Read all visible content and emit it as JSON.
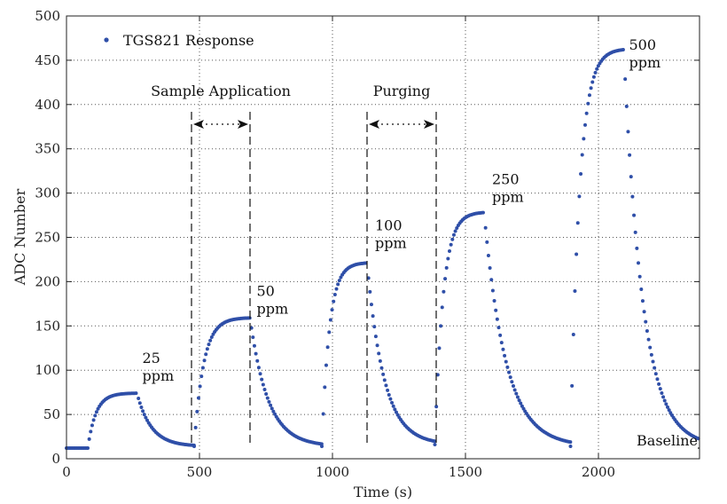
{
  "chart_data": {
    "type": "scatter",
    "title": "",
    "xlabel": "Time (s)",
    "ylabel": "ADC Number",
    "xlim": [
      0,
      2380
    ],
    "ylim": [
      0,
      500
    ],
    "xticks": [
      0,
      500,
      1000,
      1500,
      2000
    ],
    "yticks": [
      0,
      50,
      100,
      150,
      200,
      250,
      300,
      350,
      400,
      450,
      500
    ],
    "grid": true,
    "legend": {
      "position": "top-left",
      "entries": [
        "TGS821 Response"
      ]
    },
    "series": [
      {
        "name": "TGS821 Response",
        "color": "#2f4fa8",
        "marker": "dot",
        "pulses": [
          {
            "start_time": 80,
            "end_time": 265,
            "next_start": 480,
            "baseline": 12,
            "peak": 74
          },
          {
            "start_time": 480,
            "end_time": 690,
            "next_start": 960,
            "baseline": 14,
            "peak": 159
          },
          {
            "start_time": 960,
            "end_time": 1130,
            "next_start": 1385,
            "baseline": 14,
            "peak": 221
          },
          {
            "start_time": 1385,
            "end_time": 1570,
            "next_start": 1895,
            "baseline": 16,
            "peak": 278
          },
          {
            "start_time": 1895,
            "end_time": 2095,
            "next_start": 2380,
            "baseline": 14,
            "peak": 462
          }
        ]
      }
    ],
    "annotations": {
      "peak_labels": [
        {
          "value": "25",
          "unit": "ppm",
          "x": 285,
          "y": 108
        },
        {
          "value": "50",
          "unit": "ppm",
          "x": 715,
          "y": 184
        },
        {
          "value": "100",
          "unit": "ppm",
          "x": 1160,
          "y": 258
        },
        {
          "value": "250",
          "unit": "ppm",
          "x": 1600,
          "y": 310
        },
        {
          "value": "500",
          "unit": "ppm",
          "x": 2115,
          "y": 462
        }
      ],
      "sample_application": {
        "label": "Sample Application",
        "x_start": 470,
        "x_end": 690
      },
      "purging": {
        "label": "Purging",
        "x_start": 1130,
        "x_end": 1390
      },
      "baseline": {
        "label": "Baseline",
        "x_start": 2200,
        "x_end": 2380,
        "y": 12
      }
    }
  }
}
